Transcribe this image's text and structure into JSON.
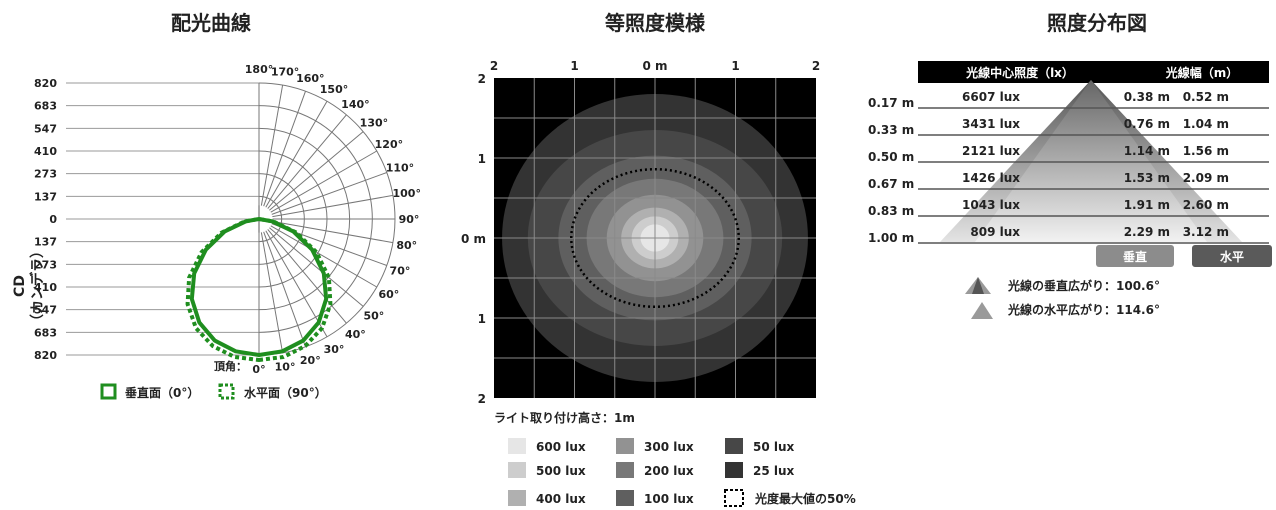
{
  "colors": {
    "curve_green": "#1f8e1f",
    "header_black": "#000000",
    "button_gray": "#8c8c8c",
    "button_dark": "#5a5a5a",
    "line_gray": "#555555"
  },
  "chart_data": [
    {
      "type": "polar",
      "title": "配光曲線",
      "ylabel_line1": "CD",
      "ylabel_line2": "（カンデラ）",
      "radial_ticks": [
        "820",
        "683",
        "547",
        "410",
        "273",
        "137",
        "0",
        "137",
        "273",
        "410",
        "547",
        "683",
        "820"
      ],
      "radial_max": 820,
      "angle_ticks": [
        "0°",
        "10°",
        "20°",
        "30°",
        "40°",
        "50°",
        "60°",
        "70°",
        "80°",
        "90°",
        "100°",
        "110°",
        "120°",
        "130°",
        "140°",
        "150°",
        "160°",
        "170°",
        "180°"
      ],
      "apex_label": "頂角：",
      "legend": [
        {
          "name": "垂直面（0°）",
          "style": "solid"
        },
        {
          "name": "水平面（90°）",
          "style": "dotted"
        }
      ],
      "series": [
        {
          "name": "垂直面（0°）",
          "angles": [
            0,
            10,
            20,
            30,
            40,
            50,
            60,
            70,
            80,
            90
          ],
          "values": [
            820,
            810,
            780,
            720,
            630,
            510,
            370,
            220,
            80,
            0
          ]
        },
        {
          "name": "水平面（90°）",
          "angles": [
            0,
            10,
            20,
            30,
            40,
            50,
            60,
            70,
            80,
            90
          ],
          "values": [
            850,
            845,
            815,
            760,
            670,
            550,
            400,
            240,
            90,
            0
          ]
        }
      ]
    },
    {
      "type": "heatmap",
      "title": "等照度模様",
      "x_ticks": [
        "2",
        "1",
        "0 m",
        "1",
        "2"
      ],
      "y_ticks": [
        "2",
        "1",
        "0 m",
        "1",
        "2"
      ],
      "range_m": 2,
      "mount_height_label": "ライト取り付け高さ：1m",
      "levels": [
        {
          "label": "25 lux",
          "lux": 25,
          "color": "#333333",
          "rx": 1.9,
          "ry": 1.8
        },
        {
          "label": "50 lux",
          "lux": 50,
          "color": "#474747",
          "rx": 1.58,
          "ry": 1.35
        },
        {
          "label": "100 lux",
          "lux": 100,
          "color": "#5f5f5f",
          "rx": 1.2,
          "ry": 1.03
        },
        {
          "label": "200 lux",
          "lux": 200,
          "color": "#787878",
          "rx": 0.85,
          "ry": 0.74
        },
        {
          "label": "300 lux",
          "lux": 300,
          "color": "#929292",
          "rx": 0.6,
          "ry": 0.54
        },
        {
          "label": "400 lux",
          "lux": 400,
          "color": "#b0b0b0",
          "rx": 0.42,
          "ry": 0.38
        },
        {
          "label": "500 lux",
          "lux": 500,
          "color": "#cdcdcd",
          "rx": 0.29,
          "ry": 0.27
        },
        {
          "label": "600 lux",
          "lux": 600,
          "color": "#e6e6e6",
          "rx": 0.18,
          "ry": 0.17
        }
      ],
      "half_max": {
        "label": "光度最大値の50%",
        "rx": 1.04,
        "ry": 0.86
      },
      "legend_order": [
        "600 lux",
        "300 lux",
        "50 lux",
        "500 lux",
        "200 lux",
        "25 lux",
        "400 lux",
        "100 lux"
      ]
    },
    {
      "type": "table",
      "title": "照度分布図",
      "headers": {
        "illuminance": "光線中心照度（lx）",
        "width": "光線幅（m）"
      },
      "rows": [
        {
          "distance": "0.17 m",
          "lux": "6607 lux",
          "v": "0.38 m",
          "h": "0.52 m"
        },
        {
          "distance": "0.33 m",
          "lux": "3431 lux",
          "v": "0.76 m",
          "h": "1.04 m"
        },
        {
          "distance": "0.50 m",
          "lux": "2121 lux",
          "v": "1.14 m",
          "h": "1.56 m"
        },
        {
          "distance": "0.67 m",
          "lux": "1426 lux",
          "v": "1.53 m",
          "h": "2.09 m"
        },
        {
          "distance": "0.83 m",
          "lux": "1043 lux",
          "v": "1.91 m",
          "h": "2.60 m"
        },
        {
          "distance": "1.00 m",
          "lux": "809 lux",
          "v": "2.29 m",
          "h": "3.12 m"
        }
      ],
      "buttons": {
        "vertical": "垂直",
        "horizontal": "水平"
      },
      "spread_vertical": "光線の垂直広がり：100.6°",
      "spread_horizontal": "光線の水平広がり：114.6°"
    }
  ]
}
